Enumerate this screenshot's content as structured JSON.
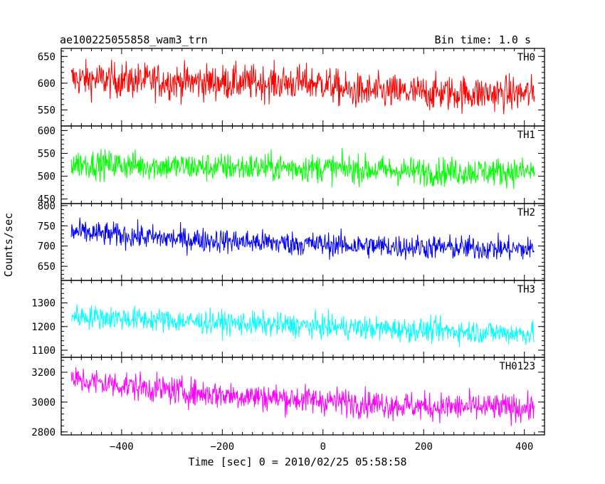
{
  "chart_data": {
    "type": "line",
    "title_left": "ae100225055858_wam3_trn",
    "title_right": "Bin time: 1.0 s",
    "xlabel": "Time [sec] 0 = 2010/02/25 05:58:58",
    "ylabel": "Counts/sec",
    "xlim": [
      -520,
      440
    ],
    "x_data_range": [
      -500,
      420
    ],
    "bin_time_s": 1.0,
    "grid": false,
    "x_ticks": [
      -400,
      -200,
      0,
      200,
      400
    ],
    "x_tick_labels": [
      "−400",
      "−200",
      "0",
      "200",
      "400"
    ],
    "panels": [
      {
        "name": "TH0",
        "color": "#ff0000",
        "ylim": [
          520,
          665
        ],
        "y_ticks": [
          550,
          600,
          650
        ],
        "y_tick_labels": [
          "550",
          "600",
          "650"
        ],
        "trend": [
          [
            -500,
            608
          ],
          [
            -250,
            602
          ],
          [
            0,
            600
          ],
          [
            50,
            585
          ],
          [
            200,
            582
          ],
          [
            420,
            580
          ]
        ],
        "noise_amplitude": 30
      },
      {
        "name": "TH1",
        "color": "#00ff00",
        "ylim": [
          440,
          610
        ],
        "y_ticks": [
          450,
          500,
          550,
          600
        ],
        "y_tick_labels": [
          "450",
          "500",
          "550",
          "600"
        ],
        "trend": [
          [
            -500,
            528
          ],
          [
            -250,
            520
          ],
          [
            0,
            518
          ],
          [
            200,
            510
          ],
          [
            420,
            510
          ]
        ],
        "noise_amplitude": 28
      },
      {
        "name": "TH2",
        "color": "#0000ff",
        "ylim": [
          615,
          805
        ],
        "y_ticks": [
          650,
          700,
          750,
          800
        ],
        "y_tick_labels": [
          "650",
          "700",
          "750",
          "800"
        ],
        "trend": [
          [
            -500,
            735
          ],
          [
            -300,
            718
          ],
          [
            -100,
            708
          ],
          [
            100,
            700
          ],
          [
            420,
            692
          ]
        ],
        "noise_amplitude": 27
      },
      {
        "name": "TH3",
        "color": "#00ffff",
        "ylim": [
          1070,
          1395
        ],
        "y_ticks": [
          1100,
          1200,
          1300
        ],
        "y_tick_labels": [
          "1100",
          "1200",
          "1300"
        ],
        "trend": [
          [
            -500,
            1245
          ],
          [
            -250,
            1220
          ],
          [
            0,
            1200
          ],
          [
            200,
            1185
          ],
          [
            420,
            1170
          ]
        ],
        "noise_amplitude": 45
      },
      {
        "name": "TH0123",
        "color": "#ff00ff",
        "ylim": [
          2780,
          3300
        ],
        "y_ticks": [
          2800,
          3000,
          3200
        ],
        "y_tick_labels": [
          "2800",
          "3000",
          "3200"
        ],
        "trend": [
          [
            -500,
            3150
          ],
          [
            -250,
            3060
          ],
          [
            0,
            3010
          ],
          [
            200,
            2970
          ],
          [
            420,
            2960
          ]
        ],
        "noise_amplitude": 85
      }
    ]
  }
}
